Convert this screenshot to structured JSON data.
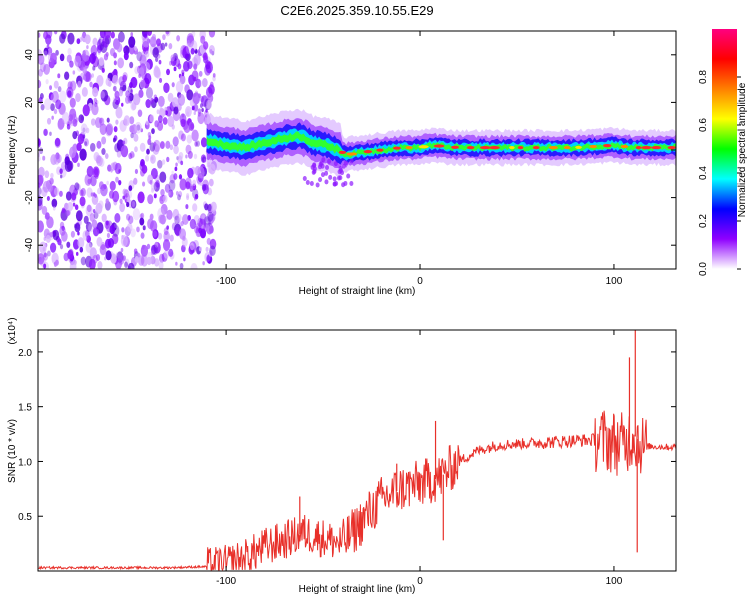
{
  "title": "C2E6.2025.359.10.55.E29",
  "chart_data": [
    {
      "type": "heatmap",
      "name": "spectrogram",
      "xlabel": "Height of straight line (km)",
      "ylabel": "Frequency (Hz)",
      "xlim": [
        -197,
        132
      ],
      "ylim": [
        -50,
        50
      ],
      "xticks": [
        -100,
        0,
        100
      ],
      "yticks": [
        -40,
        -20,
        0,
        20,
        40
      ],
      "colorbar": {
        "label": "Normalized spectral amplitude",
        "range": [
          0,
          1
        ],
        "ticks": [
          "0.0",
          "0.2",
          "0.4",
          "0.6",
          "0.8"
        ],
        "tick_values": [
          0.0,
          0.2,
          0.4,
          0.6,
          0.8
        ],
        "colors": [
          "#ffffff",
          "#8f00ff",
          "#0000ff",
          "#00ffff",
          "#00ff00",
          "#ffff00",
          "#ff8000",
          "#ff0000",
          "#ff0080"
        ]
      },
      "noise_region_x": [
        -197,
        -110
      ],
      "ridge": [
        {
          "x": -110,
          "y": 4
        },
        {
          "x": -100,
          "y": 2
        },
        {
          "x": -90,
          "y": 1
        },
        {
          "x": -80,
          "y": 3
        },
        {
          "x": -70,
          "y": 5
        },
        {
          "x": -62,
          "y": 6
        },
        {
          "x": -55,
          "y": 3
        },
        {
          "x": -48,
          "y": 2
        },
        {
          "x": -42,
          "y": 0
        },
        {
          "x": -38,
          "y": -2
        },
        {
          "x": -30,
          "y": -1
        },
        {
          "x": -20,
          "y": 0
        },
        {
          "x": -10,
          "y": 1
        },
        {
          "x": 0,
          "y": 1
        },
        {
          "x": 5,
          "y": 2
        },
        {
          "x": 20,
          "y": 1
        },
        {
          "x": 40,
          "y": 1
        },
        {
          "x": 60,
          "y": 1
        },
        {
          "x": 80,
          "y": 1
        },
        {
          "x": 100,
          "y": 2
        },
        {
          "x": 110,
          "y": 1
        },
        {
          "x": 132,
          "y": 1
        }
      ]
    },
    {
      "type": "line",
      "name": "snr",
      "xlabel": "Height of straight line (km)",
      "ylabel": "SNR (10 * v/v)",
      "scale_label": "(x10⁴)",
      "xlim": [
        -197,
        132
      ],
      "ylim": [
        0,
        2.2
      ],
      "xticks": [
        -100,
        0,
        100
      ],
      "yticks": [
        0.5,
        1.0,
        1.5,
        2.0
      ],
      "ytick_labels": [
        "0.5",
        "1.0",
        "1.5",
        "2.0"
      ],
      "color": "#e8302a",
      "series": [
        {
          "name": "SNR",
          "points": [
            {
              "x": -197,
              "y": 0.03
            },
            {
              "x": -160,
              "y": 0.03
            },
            {
              "x": -130,
              "y": 0.03
            },
            {
              "x": -110,
              "y": 0.04
            },
            {
              "x": -100,
              "y": 0.06
            },
            {
              "x": -90,
              "y": 0.12
            },
            {
              "x": -80,
              "y": 0.22
            },
            {
              "x": -70,
              "y": 0.28
            },
            {
              "x": -60,
              "y": 0.35
            },
            {
              "x": -50,
              "y": 0.3
            },
            {
              "x": -40,
              "y": 0.25
            },
            {
              "x": -30,
              "y": 0.45
            },
            {
              "x": -20,
              "y": 0.65
            },
            {
              "x": -10,
              "y": 0.75
            },
            {
              "x": 0,
              "y": 0.8
            },
            {
              "x": 10,
              "y": 0.85
            },
            {
              "x": 20,
              "y": 1.0
            },
            {
              "x": 30,
              "y": 1.1
            },
            {
              "x": 40,
              "y": 1.15
            },
            {
              "x": 60,
              "y": 1.17
            },
            {
              "x": 80,
              "y": 1.19
            },
            {
              "x": 95,
              "y": 1.2
            },
            {
              "x": 105,
              "y": 1.15
            },
            {
              "x": 110,
              "y": 1.25
            },
            {
              "x": 115,
              "y": 1.14
            },
            {
              "x": 132,
              "y": 1.13
            }
          ]
        }
      ],
      "peaks": [
        {
          "x": -62,
          "y": 0.68
        },
        {
          "x": -12,
          "y": 0.98
        },
        {
          "x": 8,
          "y": 1.37
        },
        {
          "x": 12,
          "y": 0.28
        },
        {
          "x": 108,
          "y": 1.95
        },
        {
          "x": 111,
          "y": 2.2
        },
        {
          "x": 112,
          "y": 0.17
        }
      ]
    }
  ]
}
